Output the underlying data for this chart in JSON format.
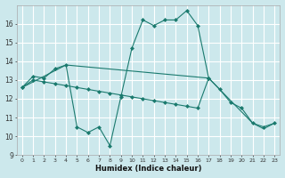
{
  "xlabel": "Humidex (Indice chaleur)",
  "bg_color": "#cce8ec",
  "grid_color": "#ffffff",
  "line_color": "#1a7a6e",
  "xlim": [
    -0.5,
    23.5
  ],
  "ylim": [
    9,
    17
  ],
  "xticks": [
    0,
    1,
    2,
    3,
    4,
    5,
    6,
    7,
    8,
    9,
    10,
    11,
    12,
    13,
    14,
    15,
    16,
    17,
    18,
    19,
    20,
    21,
    22,
    23
  ],
  "yticks": [
    9,
    10,
    11,
    12,
    13,
    14,
    15,
    16
  ],
  "line1_x": [
    0,
    1,
    2,
    3,
    4,
    5,
    6,
    7,
    8,
    9,
    10,
    11,
    12,
    13,
    14,
    15,
    16,
    17
  ],
  "line1_y": [
    12.6,
    13.2,
    13.1,
    13.6,
    13.8,
    10.5,
    10.2,
    10.5,
    9.5,
    12.1,
    14.7,
    16.2,
    15.9,
    16.2,
    16.2,
    16.7,
    15.9,
    13.1
  ],
  "line2_x": [
    0,
    1,
    2,
    3,
    4,
    5,
    6,
    7,
    8,
    9,
    10,
    11,
    12,
    13,
    14,
    15,
    16,
    17,
    18,
    19,
    20,
    21,
    22,
    23
  ],
  "line2_y": [
    12.6,
    13.0,
    12.9,
    12.8,
    12.7,
    12.6,
    12.5,
    12.4,
    12.3,
    12.2,
    12.1,
    12.0,
    11.9,
    11.8,
    11.7,
    11.6,
    11.5,
    13.1,
    12.5,
    11.8,
    11.5,
    10.7,
    10.5,
    10.7
  ],
  "line3_x": [
    0,
    4,
    17,
    21,
    22,
    23
  ],
  "line3_y": [
    12.6,
    13.8,
    13.1,
    10.7,
    10.4,
    10.7
  ]
}
